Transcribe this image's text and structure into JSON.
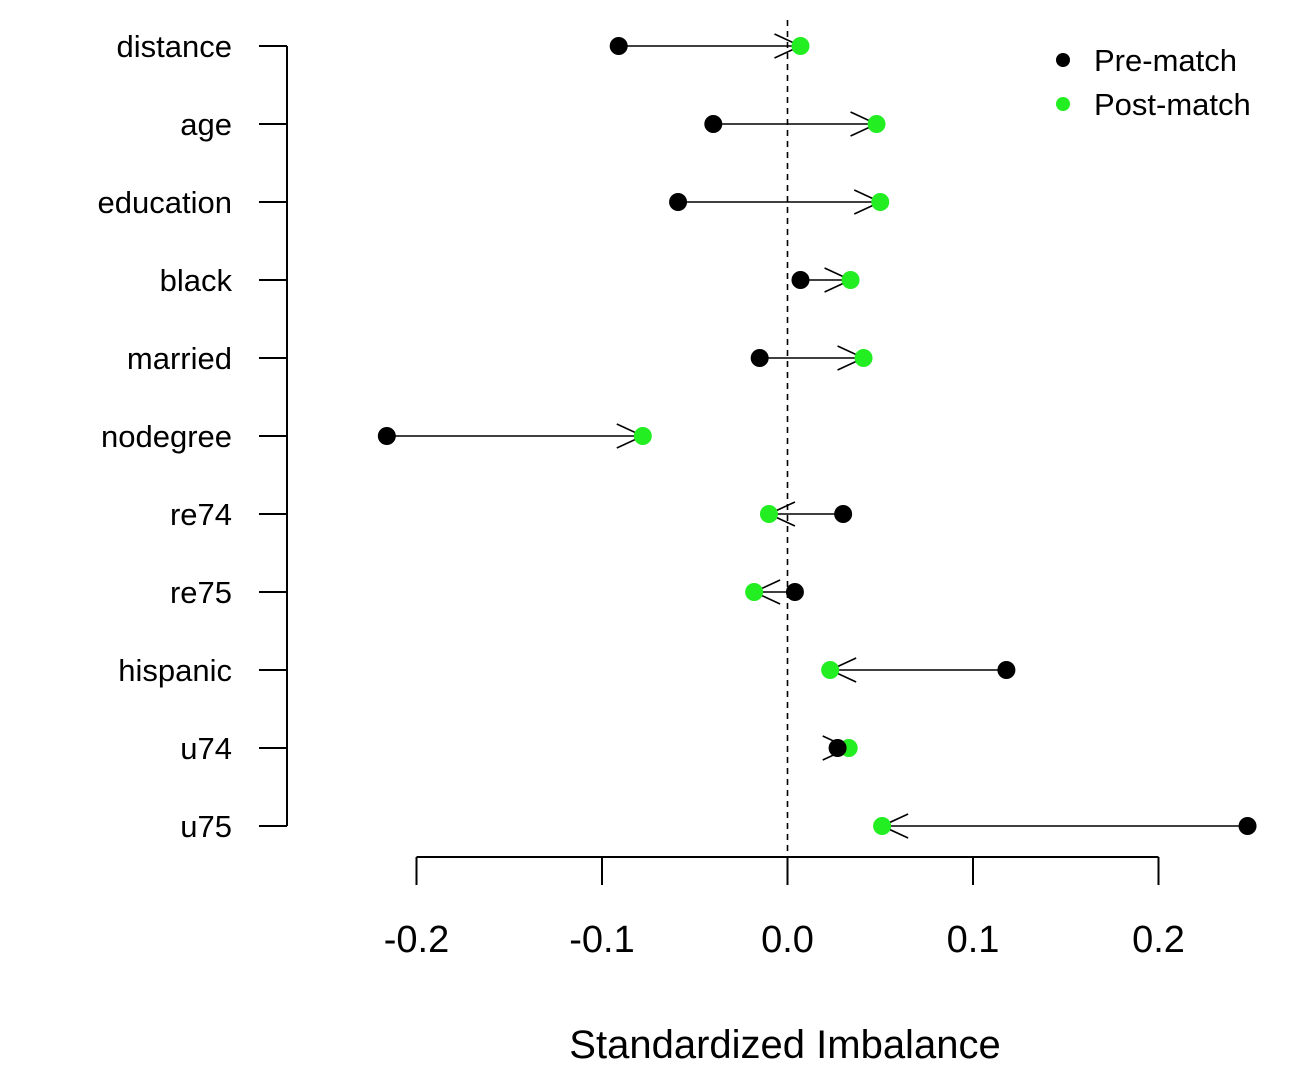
{
  "chart_data": {
    "type": "scatter",
    "subtype": "dot-arrow",
    "title": "",
    "xlabel": "Standardized Imbalance",
    "ylabel": "",
    "xlim": [
      -0.2,
      0.25
    ],
    "xticks": [
      "-0.2",
      "-0.1",
      "0.0",
      "0.1",
      "0.2"
    ],
    "xtick_values": [
      -0.2,
      -0.1,
      0.0,
      0.1,
      0.2
    ],
    "reference_line": {
      "x": 0,
      "style": "dashed"
    },
    "categories": [
      "distance",
      "age",
      "education",
      "black",
      "married",
      "nodegree",
      "re74",
      "re75",
      "hispanic",
      "u74",
      "u75"
    ],
    "series": [
      {
        "name": "Pre-match",
        "color": "#000000",
        "values": [
          -0.091,
          -0.04,
          -0.059,
          0.007,
          -0.015,
          -0.216,
          0.03,
          0.004,
          0.118,
          0.027,
          0.248
        ]
      },
      {
        "name": "Post-match",
        "color": "#22ee22",
        "values": [
          0.007,
          0.048,
          0.05,
          0.034,
          0.041,
          -0.078,
          -0.01,
          -0.018,
          0.023,
          0.033,
          0.051
        ]
      }
    ],
    "legend": {
      "position": "top-right",
      "entries": [
        "Pre-match",
        "Post-match"
      ]
    },
    "grid": false
  }
}
